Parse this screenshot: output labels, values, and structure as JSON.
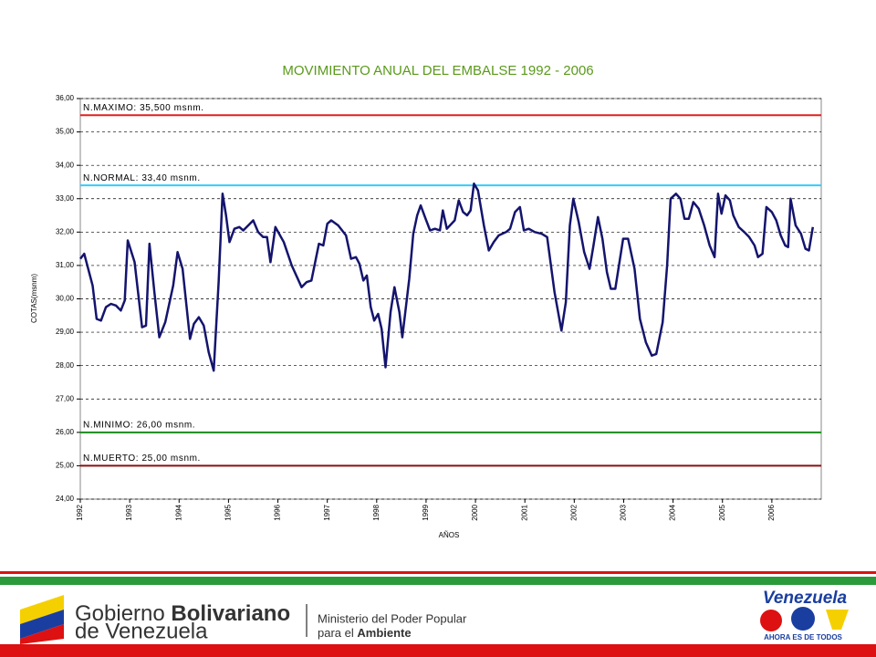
{
  "chart_data": {
    "type": "line",
    "title": "MOVIMIENTO ANUAL DEL EMBALSE 1992 - 2006",
    "y_label": "COTAS(msnm)",
    "x_label": "AÑOS",
    "xlim": [
      1992,
      2007
    ],
    "xticks": [
      1992,
      1993,
      1994,
      1995,
      1996,
      1997,
      1998,
      1999,
      2000,
      2001,
      2002,
      2003,
      2004,
      2005,
      2006
    ],
    "ylim": [
      24,
      36
    ],
    "yticks": [
      {
        "value": 24,
        "label": "24,00"
      },
      {
        "value": 25,
        "label": "25,00"
      },
      {
        "value": 26,
        "label": "26,00"
      },
      {
        "value": 27,
        "label": "27,00"
      },
      {
        "value": 28,
        "label": "28,00"
      },
      {
        "value": 29,
        "label": "29,00"
      },
      {
        "value": 30,
        "label": "30,00"
      },
      {
        "value": 31,
        "label": "31,00"
      },
      {
        "value": 32,
        "label": "32,00"
      },
      {
        "value": 33,
        "label": "33,00"
      },
      {
        "value": 34,
        "label": "34,00"
      },
      {
        "value": 35,
        "label": "35,00"
      },
      {
        "value": 36,
        "label": "36,00"
      }
    ],
    "grid": true,
    "reference_lines": [
      {
        "value": 35.5,
        "label": "N.MAXIMO: 35,500 msnm.",
        "color": "#e0201c"
      },
      {
        "value": 33.4,
        "label": "N.NORMAL: 33,40 msnm.",
        "color": "#33ccff"
      },
      {
        "value": 26,
        "label": "N.MINIMO: 26,00 msnm.",
        "color": "#1a8c1a"
      },
      {
        "value": 25,
        "label": "N.MUERTO: 25,00 msnm.",
        "color": "#8b1010"
      }
    ],
    "x": [
      1992.0,
      1992.08,
      1992.25,
      1992.33,
      1992.42,
      1992.52,
      1992.62,
      1992.72,
      1992.82,
      1992.9,
      1992.96,
      1993.1,
      1993.25,
      1993.33,
      1993.4,
      1993.5,
      1993.6,
      1993.72,
      1993.88,
      1993.97,
      1994.07,
      1994.22,
      1994.3,
      1994.4,
      1994.5,
      1994.6,
      1994.7,
      1994.8,
      1994.88,
      1994.95,
      1995.02,
      1995.12,
      1995.22,
      1995.3,
      1995.4,
      1995.5,
      1995.6,
      1995.7,
      1995.78,
      1995.85,
      1995.95,
      1996.12,
      1996.28,
      1996.48,
      1996.58,
      1996.68,
      1996.83,
      1996.92,
      1997.0,
      1997.08,
      1997.22,
      1997.38,
      1997.48,
      1997.58,
      1997.65,
      1997.73,
      1997.8,
      1997.88,
      1997.95,
      1998.03,
      1998.1,
      1998.18,
      1998.28,
      1998.36,
      1998.46,
      1998.52,
      1998.66,
      1998.74,
      1998.82,
      1998.89,
      1998.99,
      1999.08,
      1999.18,
      1999.28,
      1999.34,
      1999.42,
      1999.58,
      1999.66,
      1999.75,
      1999.83,
      1999.9,
      1999.97,
      2000.05,
      2000.17,
      2000.27,
      2000.37,
      2000.47,
      2000.62,
      2000.7,
      2000.8,
      2000.9,
      2000.98,
      2001.08,
      2001.2,
      2001.34,
      2001.45,
      2001.52,
      2001.6,
      2001.74,
      2001.83,
      2001.91,
      2001.98,
      2002.09,
      2002.2,
      2002.31,
      2002.39,
      2002.48,
      2002.57,
      2002.66,
      2002.74,
      2002.83,
      2002.99,
      2003.09,
      2003.22,
      2003.33,
      2003.45,
      2003.57,
      2003.66,
      2003.79,
      2003.88,
      2003.95,
      2004.06,
      2004.15,
      2004.23,
      2004.32,
      2004.41,
      2004.52,
      2004.63,
      2004.74,
      2004.84,
      2004.91,
      2004.98,
      2005.06,
      2005.15,
      2005.22,
      2005.33,
      2005.44,
      2005.54,
      2005.65,
      2005.72,
      2005.81,
      2005.89,
      2006.0,
      2006.09,
      2006.18,
      2006.27,
      2006.33,
      2006.38,
      2006.48,
      2006.59,
      2006.68,
      2006.75,
      2006.83
    ],
    "series": [
      {
        "name": "COTAS",
        "color": "#14146e",
        "values": [
          31.2,
          31.35,
          30.4,
          29.4,
          29.35,
          29.75,
          29.85,
          29.8,
          29.65,
          29.95,
          31.75,
          31.1,
          29.15,
          29.2,
          31.65,
          30.2,
          28.85,
          29.3,
          30.4,
          31.4,
          30.9,
          28.8,
          29.25,
          29.45,
          29.2,
          28.4,
          27.85,
          30.5,
          33.15,
          32.5,
          31.7,
          32.1,
          32.15,
          32.05,
          32.2,
          32.35,
          32.0,
          31.85,
          31.85,
          31.1,
          32.15,
          31.7,
          31.0,
          30.35,
          30.5,
          30.55,
          31.65,
          31.6,
          32.25,
          32.35,
          32.2,
          31.9,
          31.2,
          31.25,
          31.05,
          30.55,
          30.7,
          29.75,
          29.35,
          29.55,
          29.1,
          27.95,
          29.6,
          30.35,
          29.6,
          28.85,
          30.6,
          31.95,
          32.5,
          32.8,
          32.4,
          32.05,
          32.1,
          32.05,
          32.65,
          32.1,
          32.35,
          32.95,
          32.6,
          32.5,
          32.65,
          33.45,
          33.25,
          32.2,
          31.45,
          31.7,
          31.9,
          32.0,
          32.1,
          32.6,
          32.75,
          32.05,
          32.1,
          32.0,
          31.95,
          31.85,
          31.1,
          30.2,
          29.05,
          29.9,
          32.2,
          33.0,
          32.3,
          31.4,
          30.9,
          31.6,
          32.45,
          31.8,
          30.8,
          30.3,
          30.3,
          31.8,
          31.8,
          30.9,
          29.4,
          28.7,
          28.3,
          28.35,
          29.3,
          31.0,
          33.0,
          33.15,
          33.0,
          32.4,
          32.4,
          32.9,
          32.7,
          32.2,
          31.6,
          31.25,
          33.15,
          32.55,
          33.1,
          32.95,
          32.5,
          32.15,
          32.0,
          31.85,
          31.6,
          31.25,
          31.35,
          32.75,
          32.6,
          32.35,
          31.9,
          31.6,
          31.55,
          33.0,
          32.2,
          31.95,
          31.5,
          31.45,
          32.15
        ]
      }
    ]
  },
  "footer": {
    "gov_1": "Gobierno",
    "gov_2": "Bolivariano",
    "gov_3": "de Venezuela",
    "min_1": "Ministerio del Poder Popular",
    "min_2": "para el",
    "min_3": "Ambiente",
    "brand": "Venezuela",
    "slogan": "AHORA ES DE TODOS"
  }
}
